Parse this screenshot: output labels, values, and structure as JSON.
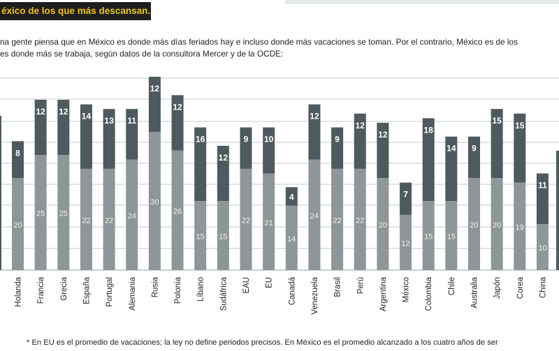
{
  "header": {
    "title": "éxico de los que más descansan..."
  },
  "intro": {
    "line1": "na gente piensa que en México es donde más días feriados hay e incluso donde más vacaciones se toman. Por el contrario, México es de los",
    "line2": "es donde más se trabaja, según datos de la consultora Mercer y de la OCDE:"
  },
  "footnote": {
    "text": "* En EU es el promedio de vacaciones; la ley no define periodos precisos. En México es el promedio alcanzado a los cuatro años de ser"
  },
  "chart_data": {
    "type": "bar",
    "stacked": true,
    "categories": [
      "Holanda",
      "Francia",
      "Grecia",
      "España",
      "Portugal",
      "Alemania",
      "Rusia",
      "Polonia",
      "Líbano",
      "Sudáfrica",
      "EAU",
      "EU",
      "Canadá",
      "Venezuela",
      "Brasil",
      "Perú",
      "Argentina",
      "México",
      "Colombia",
      "Chile",
      "Australia",
      "Japón",
      "Corea",
      "China"
    ],
    "series": [
      {
        "values": [
          20,
          25,
          25,
          22,
          22,
          24,
          30,
          26,
          15,
          15,
          22,
          21,
          14,
          24,
          22,
          22,
          20,
          12,
          15,
          15,
          20,
          20,
          19,
          10
        ]
      },
      {
        "values": [
          8,
          12,
          12,
          14,
          13,
          11,
          12,
          12,
          16,
          12,
          9,
          10,
          4,
          12,
          9,
          12,
          12,
          7,
          18,
          14,
          9,
          15,
          15,
          11
        ]
      }
    ],
    "colors": {
      "lower": "#8e9699",
      "upper": "#4f5a5f"
    },
    "ylim": [
      0,
      42
    ],
    "grid": true
  }
}
